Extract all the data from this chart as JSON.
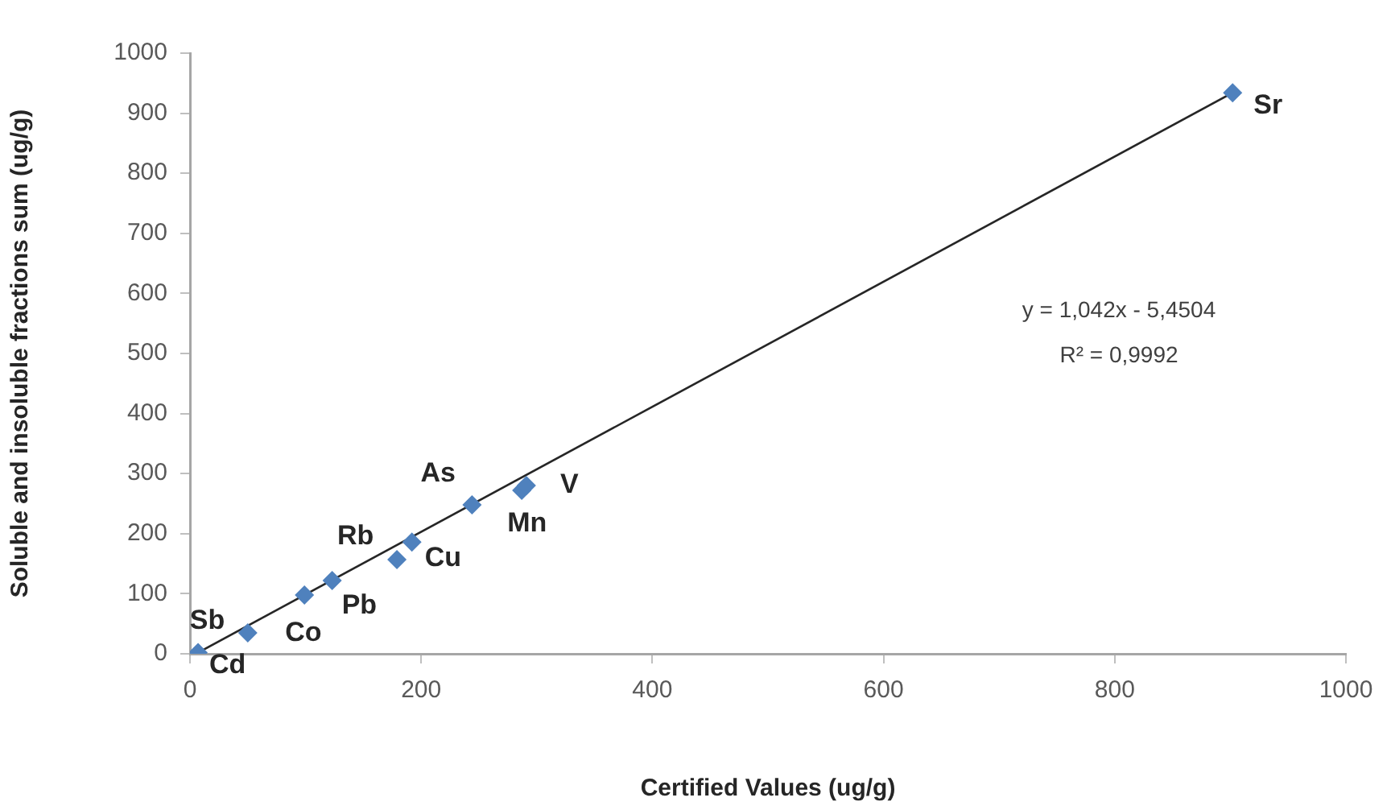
{
  "chart_data": {
    "type": "scatter",
    "xlabel": "Certified Values (ug/g)",
    "ylabel": "Soluble and insoluble fractions sum (ug/g)",
    "xlim": [
      0,
      1000
    ],
    "xticks": [
      0,
      200,
      400,
      600,
      800,
      1000
    ],
    "ylim": [
      0,
      1000
    ],
    "yticks": [
      0,
      100,
      200,
      300,
      400,
      500,
      600,
      700,
      800,
      900,
      1000
    ],
    "grid": false,
    "legend": false,
    "marker": "diamond",
    "series": [
      {
        "color": "#4f81bd",
        "x": [
          7,
          50,
          99,
          123,
          179,
          192,
          244,
          287,
          291,
          902
        ],
        "values": [
          2,
          35,
          98,
          122,
          157,
          186,
          248,
          272,
          280,
          934
        ]
      },
      {
        "type": "line",
        "color": "#262626",
        "marker": "none",
        "x": [
          7,
          902
        ],
        "values": [
          2,
          934
        ]
      }
    ],
    "annotations": [
      {
        "text": "Cd",
        "x": 7,
        "y": 2
      },
      {
        "text": "Sb",
        "x": 50,
        "y": 35
      },
      {
        "text": "Co",
        "x": 99,
        "y": 98
      },
      {
        "text": "Pb",
        "x": 123,
        "y": 122
      },
      {
        "text": "Rb",
        "x": 179,
        "y": 157
      },
      {
        "text": "Cu",
        "x": 192,
        "y": 186
      },
      {
        "text": "As",
        "x": 244,
        "y": 248
      },
      {
        "text": "Mn",
        "x": 287,
        "y": 272
      },
      {
        "text": "V",
        "x": 291,
        "y": 280
      },
      {
        "text": "Sr",
        "x": 902,
        "y": 934
      },
      "y = 1,042x - 5,4504",
      "R² = 0,9992"
    ]
  }
}
